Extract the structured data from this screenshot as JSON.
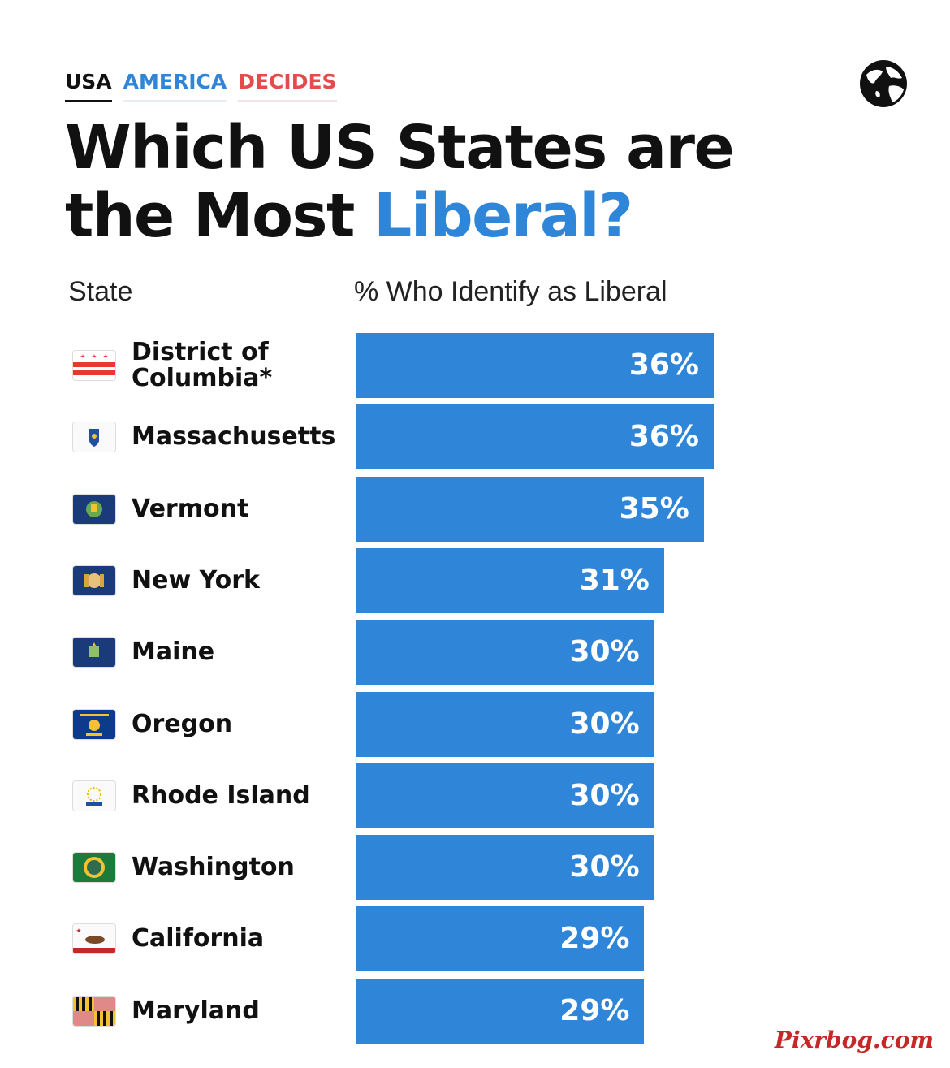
{
  "header": {
    "kicker_usa": "USA",
    "kicker_america": "AMERICA",
    "kicker_decides": "DECIDES",
    "title_line1": "Which US States are",
    "title_line2_prefix": "the Most ",
    "title_line2_accent": "Liberal?"
  },
  "columns": {
    "state": "State",
    "value": "% Who Identify as Liberal"
  },
  "colors": {
    "bar": "#2f86d9",
    "accent_blue": "#2f86d9",
    "accent_red": "#e64b4b",
    "watermark": "#c62828"
  },
  "icons": {
    "logo": "globe-icon"
  },
  "chart_data": {
    "type": "bar",
    "orientation": "horizontal",
    "title": "Which US States are the Most Liberal?",
    "xlabel": "% Who Identify as Liberal",
    "ylabel": "State",
    "categories": [
      "District of\nColumbia*",
      "Massachusetts",
      "Vermont",
      "New York",
      "Maine",
      "Oregon",
      "Rhode Island",
      "Washington",
      "California",
      "Maryland"
    ],
    "values": [
      36,
      36,
      35,
      31,
      30,
      30,
      30,
      30,
      29,
      29
    ],
    "value_labels": [
      "36%",
      "36%",
      "35%",
      "31%",
      "30%",
      "30%",
      "30%",
      "30%",
      "29%",
      "29%"
    ],
    "flag_icons": [
      "dc-flag-icon",
      "massachusetts-flag-icon",
      "vermont-flag-icon",
      "new-york-flag-icon",
      "maine-flag-icon",
      "oregon-flag-icon",
      "rhode-island-flag-icon",
      "washington-flag-icon",
      "california-flag-icon",
      "maryland-flag-icon"
    ],
    "grid": false,
    "legend": "none"
  },
  "watermark": "Pixrbog.com"
}
